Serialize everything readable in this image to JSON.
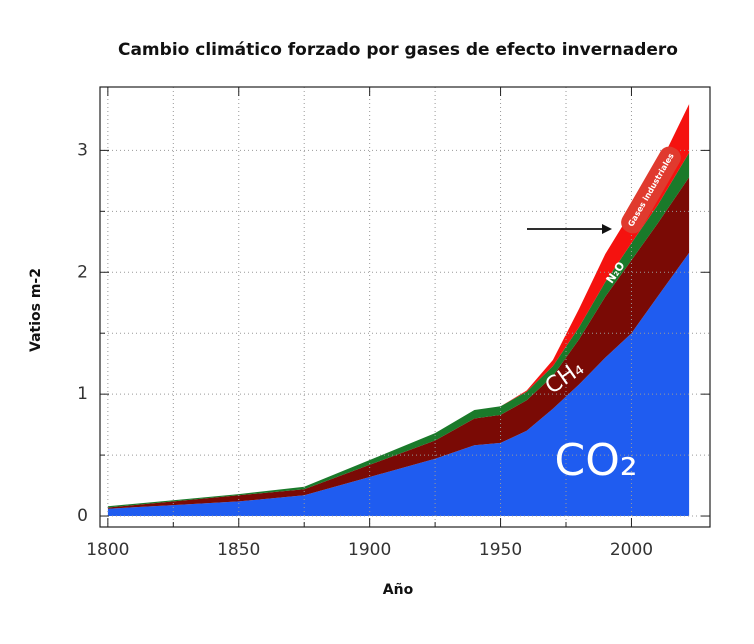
{
  "chart_data": {
    "type": "stacked-area",
    "title": "Cambio climático forzado por gases de efecto invernadero",
    "xlabel": "Año",
    "ylabel": "Vatios m-2",
    "x": [
      1800,
      1825,
      1850,
      1875,
      1900,
      1925,
      1940,
      1950,
      1960,
      1970,
      1980,
      1990,
      2000,
      2010,
      2022
    ],
    "series": [
      {
        "name": "CO₂",
        "color": "#1f5cf0",
        "values": [
          0.06,
          0.09,
          0.12,
          0.17,
          0.32,
          0.47,
          0.58,
          0.6,
          0.7,
          0.88,
          1.08,
          1.3,
          1.5,
          1.8,
          2.16
        ]
      },
      {
        "name": "CH₄",
        "color": "#7a0a05",
        "values": [
          0.01,
          0.03,
          0.05,
          0.05,
          0.1,
          0.15,
          0.22,
          0.23,
          0.25,
          0.27,
          0.37,
          0.5,
          0.6,
          0.6,
          0.62
        ]
      },
      {
        "name": "N₂O",
        "color": "#1a7a2a",
        "values": [
          0.01,
          0.01,
          0.01,
          0.02,
          0.04,
          0.06,
          0.07,
          0.07,
          0.07,
          0.08,
          0.1,
          0.12,
          0.14,
          0.15,
          0.2
        ]
      },
      {
        "name": "Gases industriales",
        "color": "#f5120f",
        "values": [
          0,
          0,
          0,
          0,
          0,
          0,
          0,
          0,
          0.01,
          0.05,
          0.15,
          0.23,
          0.26,
          0.3,
          0.4
        ]
      }
    ],
    "xlim": [
      1797,
      2030
    ],
    "ylim": [
      -0.09,
      3.52
    ],
    "xticks": [
      1800,
      1850,
      1900,
      1950,
      2000
    ],
    "yticks": [
      0,
      1,
      2,
      3
    ],
    "xminor": [
      1825,
      1875,
      1925,
      1975
    ],
    "yminor": [
      0.5,
      1.5,
      2.5
    ],
    "grid": true
  }
}
